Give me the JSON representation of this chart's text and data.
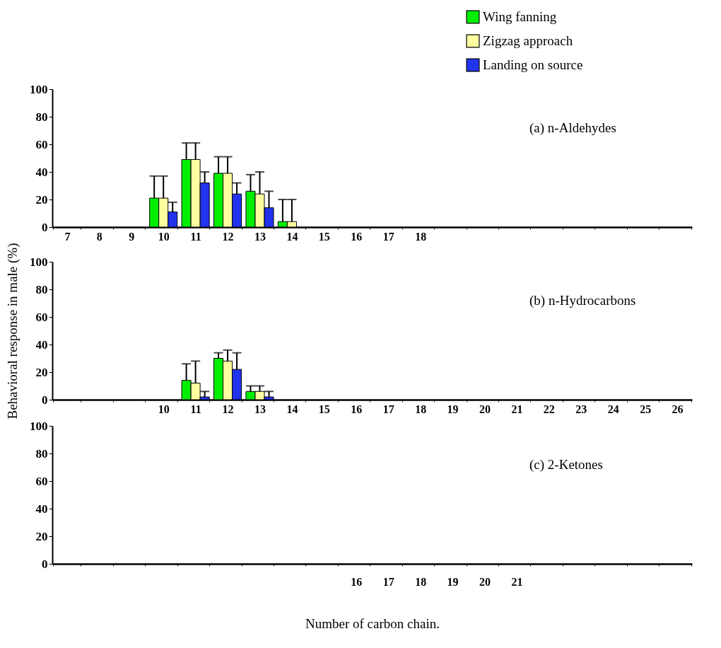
{
  "chart_data": [
    {
      "type": "bar",
      "annotations": [
        "(a)    n-Aldehydes"
      ],
      "legend": "top right",
      "grid": false,
      "ylim": [
        0,
        100
      ],
      "yticks": [
        0,
        20,
        40,
        60,
        80,
        100
      ],
      "categories": [
        "7",
        "8",
        "9",
        "10",
        "11",
        "12",
        "13",
        "14",
        "15",
        "16",
        "17",
        "18",
        null,
        null,
        null,
        null,
        null,
        null,
        null,
        null
      ],
      "series": [
        {
          "name": "Wing fanning",
          "color": "#00ee00",
          "values": [
            null,
            null,
            null,
            21,
            49,
            39,
            26,
            4,
            null,
            null,
            null,
            null,
            null,
            null,
            null,
            null,
            null,
            null,
            null,
            null
          ],
          "errors": [
            null,
            null,
            null,
            [
              21,
              37
            ],
            [
              49,
              61
            ],
            [
              39,
              51
            ],
            [
              26,
              38
            ],
            [
              4,
              20
            ],
            null,
            null,
            null,
            null,
            null,
            null,
            null,
            null,
            null,
            null,
            null,
            null
          ]
        },
        {
          "name": "Zigzag approach",
          "color": "#ffffa0",
          "values": [
            null,
            null,
            null,
            21,
            49,
            39,
            24,
            4,
            null,
            null,
            null,
            null,
            null,
            null,
            null,
            null,
            null,
            null,
            null,
            null
          ],
          "errors": [
            null,
            null,
            null,
            [
              21,
              37
            ],
            [
              49,
              61
            ],
            [
              39,
              51
            ],
            [
              24,
              40
            ],
            [
              4,
              20
            ],
            null,
            null,
            null,
            null,
            null,
            null,
            null,
            null,
            null,
            null,
            null,
            null
          ]
        },
        {
          "name": "Landing on source",
          "color": "#2233ee",
          "values": [
            null,
            null,
            null,
            11,
            32,
            24,
            14,
            null,
            null,
            null,
            null,
            null,
            null,
            null,
            null,
            null,
            null,
            null,
            null,
            null
          ],
          "errors": [
            null,
            null,
            null,
            [
              11,
              18
            ],
            [
              32,
              40
            ],
            [
              24,
              32
            ],
            [
              14,
              26
            ],
            null,
            null,
            null,
            null,
            null,
            null,
            null,
            null,
            null,
            null,
            null,
            null,
            null
          ]
        }
      ]
    },
    {
      "type": "bar",
      "annotations": [
        "(b)    n-Hydrocarbons"
      ],
      "ylabel": "Behavioral response in male (%)",
      "grid": false,
      "ylim": [
        0,
        100
      ],
      "yticks": [
        0,
        20,
        40,
        60,
        80,
        100
      ],
      "categories": [
        null,
        null,
        null,
        "10",
        "11",
        "12",
        "13",
        "14",
        "15",
        "16",
        "17",
        "18",
        "19",
        "20",
        "21",
        "22",
        "23",
        "24",
        "25",
        "26"
      ],
      "series": [
        {
          "color": "#00ee00",
          "values": [
            null,
            null,
            null,
            null,
            14,
            30,
            6,
            null,
            null,
            null,
            null,
            null,
            null,
            null,
            null,
            null,
            null,
            null,
            null,
            null
          ],
          "errors": [
            null,
            null,
            null,
            null,
            [
              14,
              26
            ],
            [
              30,
              34
            ],
            [
              6,
              10
            ],
            null,
            null,
            null,
            null,
            null,
            null,
            null,
            null,
            null,
            null,
            null,
            null,
            null
          ]
        },
        {
          "color": "#ffffa0",
          "values": [
            null,
            null,
            null,
            null,
            12,
            28,
            6,
            null,
            null,
            null,
            null,
            null,
            null,
            null,
            null,
            null,
            null,
            null,
            null,
            null
          ],
          "errors": [
            null,
            null,
            null,
            null,
            [
              12,
              28
            ],
            [
              28,
              36
            ],
            [
              6,
              10
            ],
            null,
            null,
            null,
            null,
            null,
            null,
            null,
            null,
            null,
            null,
            null,
            null,
            null
          ]
        },
        {
          "color": "#2233ee",
          "values": [
            null,
            null,
            null,
            null,
            2,
            22,
            2,
            null,
            null,
            null,
            null,
            null,
            null,
            null,
            null,
            null,
            null,
            null,
            null,
            null
          ],
          "errors": [
            null,
            null,
            null,
            null,
            [
              2,
              6
            ],
            [
              22,
              34
            ],
            [
              2,
              6
            ],
            null,
            null,
            null,
            null,
            null,
            null,
            null,
            null,
            null,
            null,
            null,
            null,
            null
          ]
        }
      ]
    },
    {
      "type": "bar",
      "annotations": [
        "(c)    2-Ketones"
      ],
      "xlabel": "Number of carbon chain.",
      "grid": false,
      "ylim": [
        0,
        100
      ],
      "yticks": [
        0,
        20,
        40,
        60,
        80,
        100
      ],
      "categories": [
        null,
        null,
        null,
        null,
        null,
        null,
        null,
        null,
        null,
        "16",
        "17",
        "18",
        "19",
        "20",
        "21",
        null,
        null,
        null,
        null,
        null
      ]
    }
  ]
}
